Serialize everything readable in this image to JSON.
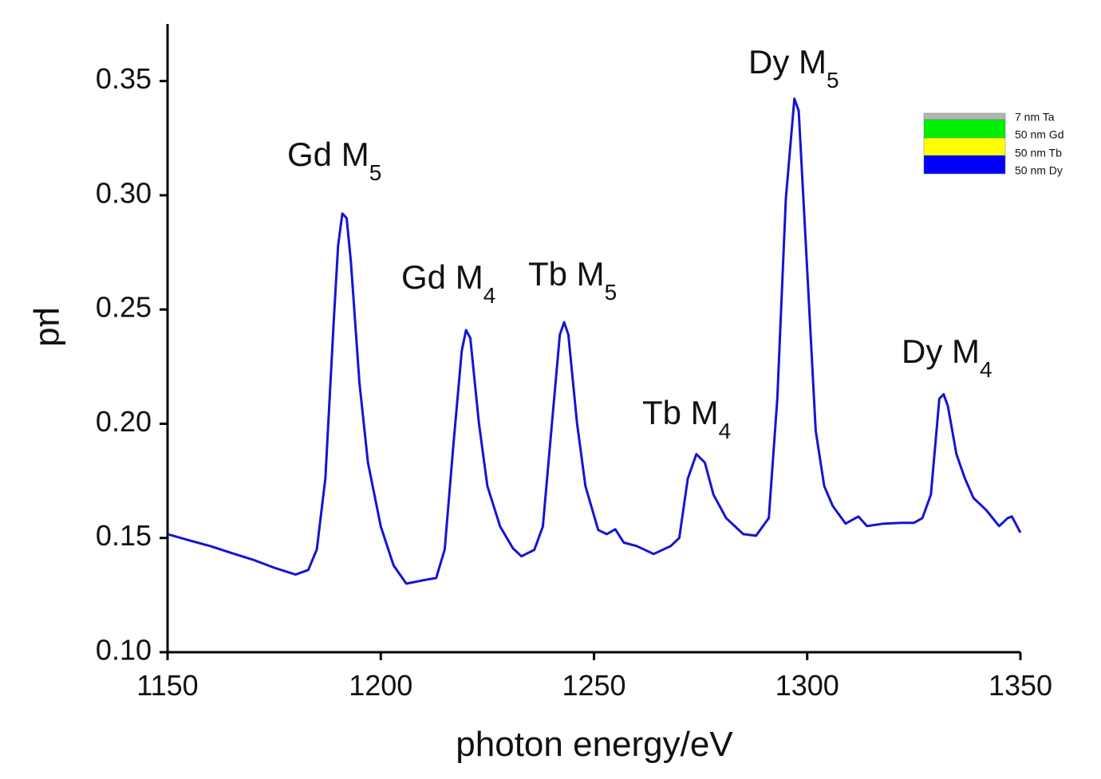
{
  "chart_data": {
    "type": "line",
    "x_label": "photon energy/eV",
    "y_label": "µd",
    "x": [
      1150,
      1155,
      1160,
      1165,
      1170,
      1175,
      1180,
      1183,
      1185,
      1187,
      1189,
      1190,
      1191,
      1192,
      1193,
      1195,
      1197,
      1200,
      1203,
      1206,
      1210,
      1213,
      1215,
      1217,
      1219,
      1220,
      1221,
      1223,
      1225,
      1228,
      1231,
      1233,
      1236,
      1238,
      1240,
      1242,
      1243,
      1244,
      1246,
      1248,
      1251,
      1253,
      1255,
      1257,
      1260,
      1264,
      1268,
      1270,
      1272,
      1274,
      1276,
      1278,
      1281,
      1285,
      1288,
      1291,
      1293,
      1295,
      1297,
      1298,
      1300,
      1302,
      1304,
      1306,
      1309,
      1312,
      1314,
      1318,
      1322,
      1325,
      1327,
      1329,
      1331,
      1332,
      1333,
      1335,
      1337,
      1339,
      1342,
      1345,
      1347,
      1348,
      1350
    ],
    "series": [
      {
        "color": "#1414d2",
        "values": [
          0.1517,
          0.149,
          0.1465,
          0.1434,
          0.1405,
          0.137,
          0.134,
          0.136,
          0.145,
          0.176,
          0.246,
          0.278,
          0.292,
          0.29,
          0.271,
          0.218,
          0.183,
          0.155,
          0.138,
          0.13,
          0.1315,
          0.1325,
          0.145,
          0.19,
          0.232,
          0.241,
          0.2375,
          0.2005,
          0.1727,
          0.155,
          0.1455,
          0.142,
          0.1448,
          0.155,
          0.197,
          0.239,
          0.2444,
          0.239,
          0.2007,
          0.1727,
          0.1535,
          0.1517,
          0.1538,
          0.148,
          0.1465,
          0.143,
          0.1465,
          0.15,
          0.176,
          0.1867,
          0.183,
          0.169,
          0.1587,
          0.1517,
          0.151,
          0.1587,
          0.211,
          0.2986,
          0.3423,
          0.337,
          0.267,
          0.197,
          0.1727,
          0.164,
          0.1563,
          0.1594,
          0.1552,
          0.1563,
          0.1566,
          0.1566,
          0.1587,
          0.169,
          0.211,
          0.2129,
          0.2077,
          0.1867,
          0.176,
          0.1675,
          0.1622,
          0.1552,
          0.1587,
          0.1594,
          0.1524
        ]
      }
    ],
    "xlim": [
      1150,
      1350
    ],
    "xticks": [
      1150,
      1200,
      1250,
      1300,
      1350
    ],
    "ylim": [
      0.1,
      0.375
    ],
    "yticks": [
      {
        "value": 0.1,
        "label": "0.10"
      },
      0.15,
      {
        "value": 0.2,
        "label": "0.20"
      },
      0.25,
      {
        "value": 0.3,
        "label": "0.30"
      },
      0.35
    ],
    "annotations": [
      {
        "text": "Gd M",
        "sub": "5"
      },
      {
        "text": "Gd M",
        "sub": "4"
      },
      {
        "text": "Tb M",
        "sub": "5"
      },
      {
        "text": "Tb M",
        "sub": "4"
      },
      {
        "text": "Dy M",
        "sub": "5"
      },
      {
        "text": "Dy M",
        "sub": "4"
      }
    ],
    "inset": [
      {
        "label": "7 nm Ta",
        "color": "#b4b4b4"
      },
      {
        "label": "50 nm Gd",
        "color": "#00f000"
      },
      {
        "label": "50 nm Tb",
        "color": "#ffff00"
      },
      {
        "label": "50 nm Dy",
        "color": "#0000ff"
      }
    ]
  }
}
